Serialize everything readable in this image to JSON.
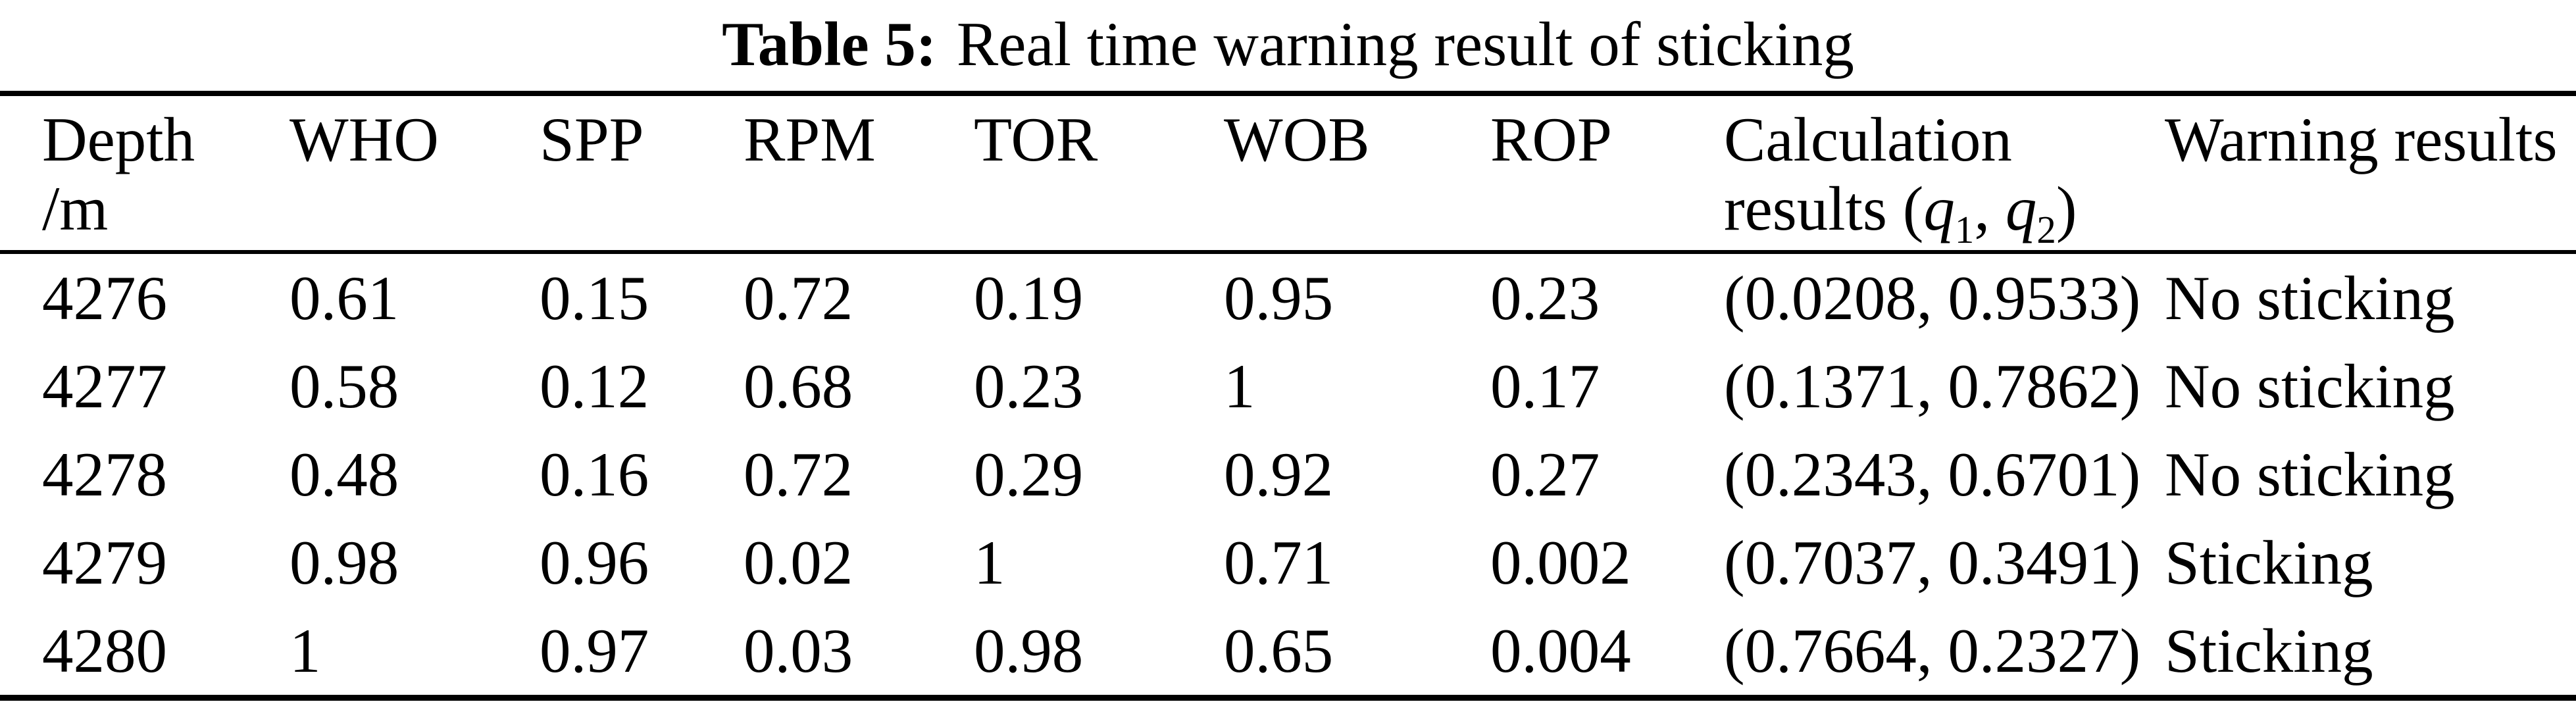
{
  "title": {
    "label": "Table 5:",
    "text": "Real time warning result of sticking"
  },
  "table": {
    "headers": {
      "depth": {
        "line1": "Depth",
        "line2": "/m"
      },
      "who": "WHO",
      "spp": "SPP",
      "rpm": "RPM",
      "tor": "TOR",
      "wob": "WOB",
      "rop": "ROP",
      "calc": {
        "line1": "Calculation",
        "line2": {
          "prefix": "results (",
          "q1": "q",
          "q1_sub": "1",
          "comma": ", ",
          "q2": "q",
          "q2_sub": "2",
          "suffix": ")"
        }
      },
      "warning": "Warning results"
    },
    "rows": [
      {
        "cells": [
          "4276",
          "0.61",
          "0.15",
          "0.72",
          "0.19",
          "0.95",
          "0.23",
          "(0.0208, 0.9533)",
          "No sticking"
        ]
      },
      {
        "cells": [
          "4277",
          "0.58",
          "0.12",
          "0.68",
          "0.23",
          "1",
          "0.17",
          "(0.1371, 0.7862)",
          "No sticking"
        ]
      },
      {
        "cells": [
          "4278",
          "0.48",
          "0.16",
          "0.72",
          "0.29",
          "0.92",
          "0.27",
          "(0.2343, 0.6701)",
          "No sticking"
        ]
      },
      {
        "cells": [
          "4279",
          "0.98",
          "0.96",
          "0.02",
          "1",
          "0.71",
          "0.002",
          "(0.7037, 0.3491)",
          "Sticking"
        ]
      },
      {
        "cells": [
          "4280",
          "1",
          "0.97",
          "0.03",
          "0.98",
          "0.65",
          "0.004",
          "(0.7664, 0.2327)",
          "Sticking"
        ]
      }
    ]
  }
}
